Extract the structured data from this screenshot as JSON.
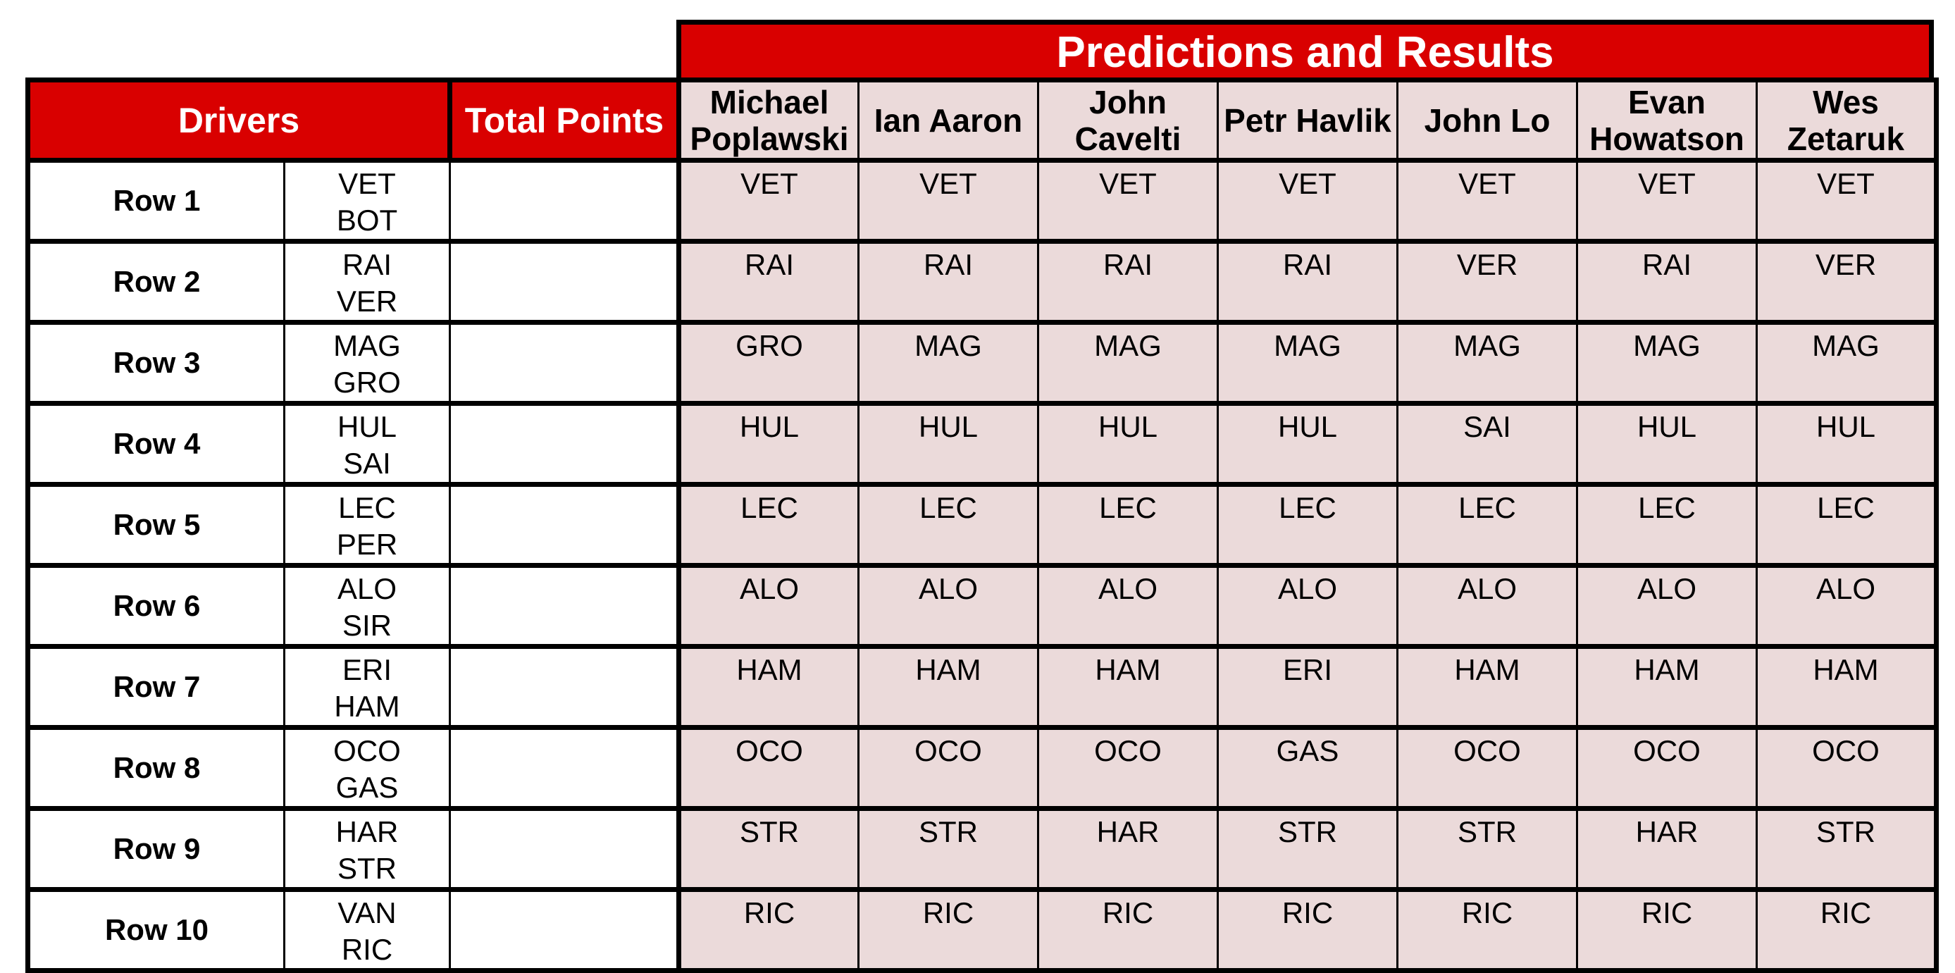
{
  "title": "Predictions and Results",
  "headers": {
    "drivers": "Drivers",
    "total_points": "Total Points"
  },
  "predictors": [
    [
      "Michael",
      "Poplawski"
    ],
    [
      "Ian Aaron"
    ],
    [
      "John",
      "Cavelti"
    ],
    [
      "Petr Havlik"
    ],
    [
      "John Lo"
    ],
    [
      "Evan",
      "Howatson"
    ],
    [
      "Wes",
      "Zetaruk"
    ]
  ],
  "rows": [
    {
      "label": "Row 1",
      "drivers": [
        "VET",
        "BOT"
      ],
      "total": "",
      "predictions": [
        "VET",
        "VET",
        "VET",
        "VET",
        "VET",
        "VET",
        "VET"
      ]
    },
    {
      "label": "Row 2",
      "drivers": [
        "RAI",
        "VER"
      ],
      "total": "",
      "predictions": [
        "RAI",
        "RAI",
        "RAI",
        "RAI",
        "VER",
        "RAI",
        "VER"
      ]
    },
    {
      "label": "Row 3",
      "drivers": [
        "MAG",
        "GRO"
      ],
      "total": "",
      "predictions": [
        "GRO",
        "MAG",
        "MAG",
        "MAG",
        "MAG",
        "MAG",
        "MAG"
      ]
    },
    {
      "label": "Row 4",
      "drivers": [
        "HUL",
        "SAI"
      ],
      "total": "",
      "predictions": [
        "HUL",
        "HUL",
        "HUL",
        "HUL",
        "SAI",
        "HUL",
        "HUL"
      ]
    },
    {
      "label": "Row 5",
      "drivers": [
        "LEC",
        "PER"
      ],
      "total": "",
      "predictions": [
        "LEC",
        "LEC",
        "LEC",
        "LEC",
        "LEC",
        "LEC",
        "LEC"
      ]
    },
    {
      "label": "Row 6",
      "drivers": [
        "ALO",
        "SIR"
      ],
      "total": "",
      "predictions": [
        "ALO",
        "ALO",
        "ALO",
        "ALO",
        "ALO",
        "ALO",
        "ALO"
      ]
    },
    {
      "label": "Row 7",
      "drivers": [
        "ERI",
        "HAM"
      ],
      "total": "",
      "predictions": [
        "HAM",
        "HAM",
        "HAM",
        "ERI",
        "HAM",
        "HAM",
        "HAM"
      ]
    },
    {
      "label": "Row 8",
      "drivers": [
        "OCO",
        "GAS"
      ],
      "total": "",
      "predictions": [
        "OCO",
        "OCO",
        "OCO",
        "GAS",
        "OCO",
        "OCO",
        "OCO"
      ]
    },
    {
      "label": "Row 9",
      "drivers": [
        "HAR",
        "STR"
      ],
      "total": "",
      "predictions": [
        "STR",
        "STR",
        "HAR",
        "STR",
        "STR",
        "HAR",
        "STR"
      ]
    },
    {
      "label": "Row 10",
      "drivers": [
        "VAN",
        "RIC"
      ],
      "total": "",
      "predictions": [
        "RIC",
        "RIC",
        "RIC",
        "RIC",
        "RIC",
        "RIC",
        "RIC"
      ]
    }
  ],
  "colors": {
    "header_red": "#d90000",
    "prediction_bg": "#ebdada",
    "border": "#000000"
  }
}
